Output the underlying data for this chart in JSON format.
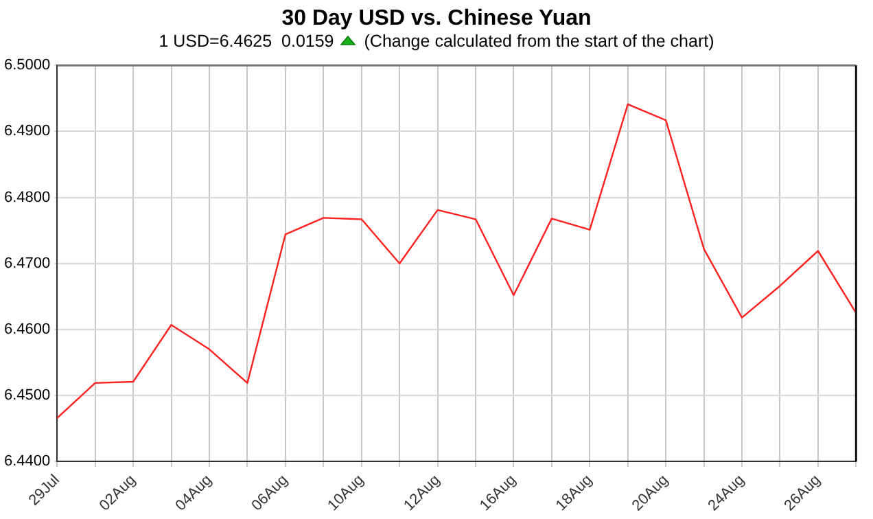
{
  "chart_data": {
    "type": "line",
    "title": "30 Day USD vs. Chinese Yuan",
    "subtitle": "1 USD=6.4625  0.0159",
    "annotations": [
      "(Change calculated from the start of the chart)"
    ],
    "categories": [
      "29Jul",
      null,
      "02Aug",
      null,
      "04Aug",
      null,
      "06Aug",
      null,
      "10Aug",
      null,
      "12Aug",
      null,
      "16Aug",
      null,
      "18Aug",
      null,
      "20Aug",
      null,
      "24Aug",
      null,
      "26Aug",
      null
    ],
    "series": [
      {
        "color": "#ff2020",
        "values": [
          6.4466,
          6.4519,
          6.4521,
          6.4607,
          6.457,
          6.4519,
          6.4744,
          6.4769,
          6.4767,
          6.47,
          6.4781,
          6.4767,
          6.4652,
          6.4768,
          6.4751,
          6.4941,
          6.4917,
          6.4722,
          6.4618,
          6.4666,
          6.4719,
          6.4625
        ]
      }
    ],
    "ylim": [
      6.44,
      6.5
    ],
    "yticks": [
      {
        "value": 6.44,
        "label": "6.4400"
      },
      {
        "value": 6.45,
        "label": "6.4500"
      },
      {
        "value": 6.46,
        "label": "6.4600"
      },
      {
        "value": 6.47,
        "label": "6.4700"
      },
      {
        "value": 6.48,
        "label": "6.4800"
      },
      {
        "value": 6.49,
        "label": "6.4900"
      },
      {
        "value": 6.5,
        "label": "6.5000"
      }
    ],
    "grid": true,
    "legend": false,
    "marker": "none",
    "line_style": "solid"
  }
}
